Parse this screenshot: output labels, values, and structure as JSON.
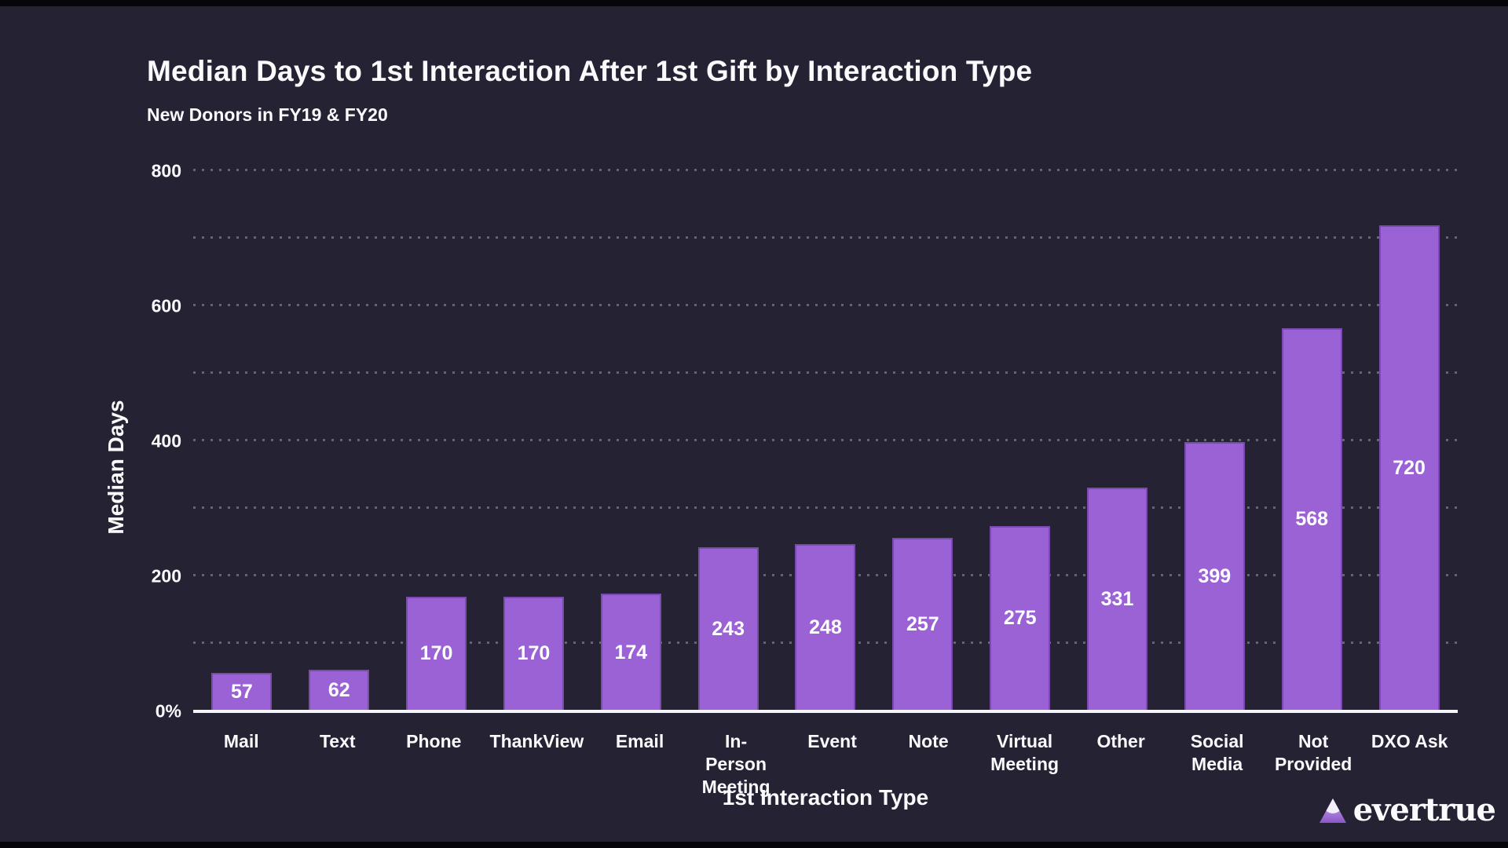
{
  "header": {
    "title": "Median Days to 1st Interaction After 1st Gift by Interaction Type",
    "subtitle": "New Donors in FY19 & FY20"
  },
  "chart_data": {
    "type": "bar",
    "title": "Median Days to 1st Interaction After 1st Gift by Interaction Type",
    "subtitle": "New Donors in FY19 & FY20",
    "categories": [
      "Mail",
      "Text",
      "Phone",
      "ThankView",
      "Email",
      "In-Person Meeting",
      "Event",
      "Note",
      "Virtual Meeting",
      "Other",
      "Social Media",
      "Not Provided",
      "DXO Ask"
    ],
    "values": [
      57,
      62,
      170,
      170,
      174,
      243,
      248,
      257,
      275,
      331,
      399,
      568,
      720
    ],
    "xlabel": "1st Interaction Type",
    "ylabel": "Median Days",
    "ylim": [
      0,
      800
    ],
    "grid_step": 100,
    "grid_style": "dotted-horizontal",
    "legend_position": "none",
    "bar_value_labels": "inside-centered",
    "yticks": [
      {
        "value": 0,
        "label": "0%"
      },
      {
        "value": 200,
        "label": "200"
      },
      {
        "value": 400,
        "label": "400"
      },
      {
        "value": 600,
        "label": "600"
      },
      {
        "value": 800,
        "label": "800"
      }
    ],
    "colors": {
      "background": "#252233",
      "bar": "#9B62D6",
      "text": "#FAFAFC",
      "grid": "#9B99A7",
      "axis_line": "#F5F4F8"
    }
  },
  "footer": {
    "logo_text": "evertrue"
  }
}
